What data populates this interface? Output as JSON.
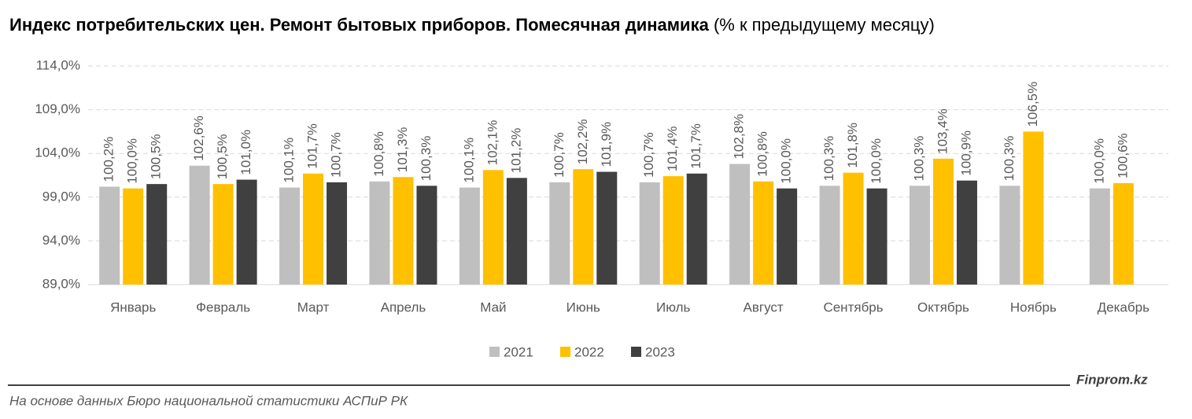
{
  "chart_data": {
    "type": "bar",
    "title": "Индекс потребительских цен. Ремонт бытовых приборов. Помесячная динамика",
    "subtitle": "(% к предыдущему месяцу)",
    "categories": [
      "Январь",
      "Февраль",
      "Март",
      "Апрель",
      "Май",
      "Июнь",
      "Июль",
      "Август",
      "Сентябрь",
      "Октябрь",
      "Ноябрь",
      "Декабрь"
    ],
    "series": [
      {
        "name": "2021",
        "color": "#bfbfbf",
        "values": [
          100.2,
          102.6,
          100.1,
          100.8,
          100.1,
          100.7,
          100.7,
          102.8,
          100.3,
          100.3,
          100.3,
          100.0
        ],
        "value_labels": [
          "100,2%",
          "102,6%",
          "100,1%",
          "100,8%",
          "100,1%",
          "100,7%",
          "100,7%",
          "102,8%",
          "100,3%",
          "100,3%",
          "100,3%",
          "100,0%"
        ]
      },
      {
        "name": "2022",
        "color": "#ffc000",
        "values": [
          100.0,
          100.5,
          101.7,
          101.3,
          102.1,
          102.2,
          101.4,
          100.8,
          101.8,
          103.4,
          106.5,
          100.6
        ],
        "value_labels": [
          "100,0%",
          "100,5%",
          "101,7%",
          "101,3%",
          "102,1%",
          "102,2%",
          "101,4%",
          "100,8%",
          "101,8%",
          "103,4%",
          "106,5%",
          "100,6%"
        ]
      },
      {
        "name": "2023",
        "color": "#404040",
        "values": [
          100.5,
          101.0,
          100.7,
          100.3,
          101.2,
          101.9,
          101.7,
          100.0,
          100.0,
          100.9,
          null,
          null
        ],
        "value_labels": [
          "100,5%",
          "101,0%",
          "100,7%",
          "100,3%",
          "101,2%",
          "101,9%",
          "101,7%",
          "100,0%",
          "100,0%",
          "100,9%",
          null,
          null
        ]
      }
    ],
    "ylim": [
      89,
      114
    ],
    "yticks": [
      {
        "value": 89,
        "label": "89,0%"
      },
      {
        "value": 94,
        "label": "94,0%"
      },
      {
        "value": 99,
        "label": "99,0%"
      },
      {
        "value": 104,
        "label": "104,0%"
      },
      {
        "value": 109,
        "label": "109,0%"
      },
      {
        "value": 114,
        "label": "114,0%"
      }
    ],
    "grid": true,
    "legend": "bottom",
    "source": "На основе данных Бюро национальной статистики АСПиР РК",
    "brand": "Finprom.kz"
  }
}
